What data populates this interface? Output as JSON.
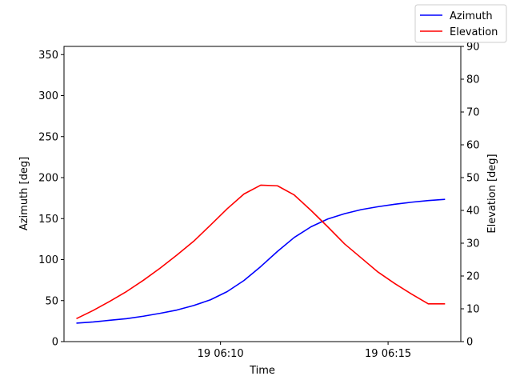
{
  "chart_data": {
    "type": "line",
    "title": "",
    "xlabel": "Time",
    "ylabel_left": "Azimuth [deg]",
    "ylabel_right": "Elevation [deg]",
    "x_tick_labels": [
      {
        "t": 10.0,
        "label": "19 06:10"
      },
      {
        "t": 15.0,
        "label": "19 06:15"
      }
    ],
    "x_unit": "minutes after 06:00",
    "xlim": [
      5.33,
      17.17
    ],
    "ylim_left": [
      0,
      360
    ],
    "ylim_right": [
      0,
      90
    ],
    "yticks_left": [
      0,
      50,
      100,
      150,
      200,
      250,
      300,
      350
    ],
    "yticks_right": [
      0,
      10,
      20,
      30,
      40,
      50,
      60,
      70,
      80,
      90
    ],
    "grid": false,
    "legend_position": "top-right",
    "x": [
      5.7,
      6.2,
      6.7,
      7.2,
      7.7,
      8.2,
      8.7,
      9.2,
      9.7,
      10.2,
      10.7,
      11.2,
      11.7,
      12.2,
      12.7,
      13.2,
      13.7,
      14.2,
      14.7,
      15.2,
      15.7,
      16.2,
      16.7
    ],
    "series": [
      {
        "name": "Azimuth",
        "axis": "left",
        "color": "#0000ff",
        "values": [
          22.5,
          24,
          26,
          28,
          31,
          34.5,
          38.5,
          44,
          51,
          61,
          74.5,
          91.5,
          110,
          127,
          140,
          149.5,
          156,
          161,
          164.5,
          167.5,
          170,
          172,
          173.5
        ]
      },
      {
        "name": "Elevation",
        "axis": "right",
        "color": "#ff0000",
        "values": [
          7,
          9.5,
          12.3,
          15.3,
          18.7,
          22.4,
          26.4,
          30.6,
          35.5,
          40.5,
          45,
          47.7,
          47.5,
          44.7,
          40,
          35,
          29.8,
          25.5,
          21.2,
          17.7,
          14.5,
          11.5,
          11.5
        ]
      }
    ]
  }
}
